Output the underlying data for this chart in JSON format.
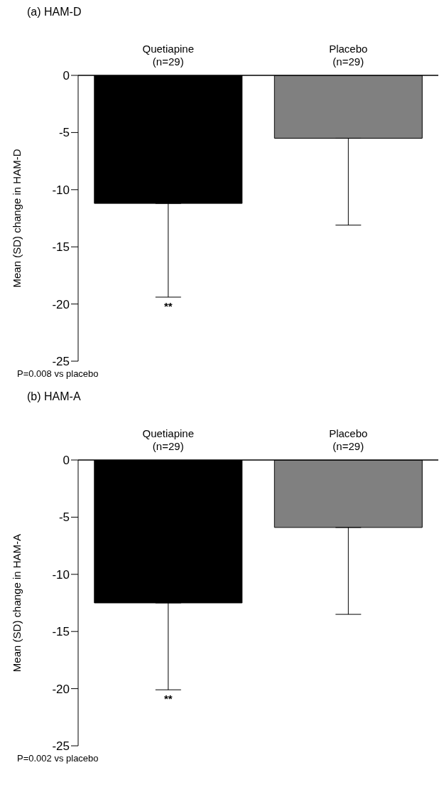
{
  "chart_data": [
    {
      "type": "bar",
      "title": "(a) HAM-D",
      "ylabel": "Mean (SD) change in HAM-D",
      "categories": [
        "Quetiapine\n(n=29)",
        "Placebo\n(n=29)"
      ],
      "values": [
        -11.2,
        -5.5
      ],
      "colors": [
        "#000000",
        "#808080"
      ],
      "errors": [
        [
          -19.4,
          -11.2
        ],
        [
          -13.1,
          -5.5
        ]
      ],
      "ylim": [
        -25,
        0
      ],
      "yticks": [
        0,
        -5,
        -10,
        -15,
        -20,
        -25
      ],
      "grid": false,
      "legend": false,
      "annotations": [
        "**",
        "P=0.008 vs placebo"
      ]
    },
    {
      "type": "bar",
      "title": "(b) HAM-A",
      "ylabel": "Mean (SD) change in HAM-A",
      "categories": [
        "Quetiapine\n(n=29)",
        "Placebo\n(n=29)"
      ],
      "values": [
        -12.5,
        -5.9
      ],
      "colors": [
        "#000000",
        "#808080"
      ],
      "errors": [
        [
          -20.1,
          -12.5
        ],
        [
          -13.5,
          -5.9
        ]
      ],
      "ylim": [
        -25,
        0
      ],
      "yticks": [
        0,
        -5,
        -10,
        -15,
        -20,
        -25
      ],
      "grid": false,
      "legend": false,
      "annotations": [
        "**",
        "P=0.002 vs placebo"
      ]
    }
  ]
}
